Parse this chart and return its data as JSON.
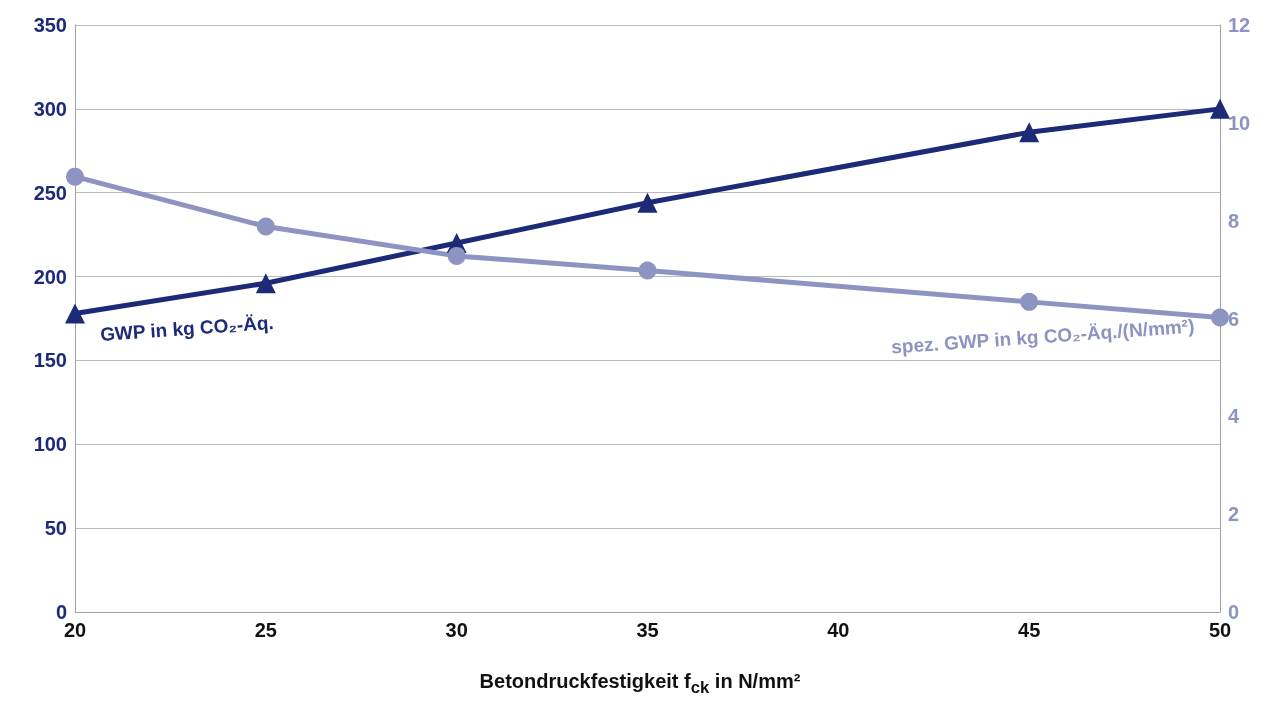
{
  "chart_data": {
    "type": "line",
    "xlabel": "Betondruckfestigkeit f$_{ck}$ in N/mm²",
    "x": [
      20,
      25,
      30,
      35,
      45,
      50
    ],
    "xlim": [
      20,
      50
    ],
    "xticks": [
      20,
      25,
      30,
      35,
      40,
      45,
      50
    ],
    "ylim": [
      0,
      350
    ],
    "yticks": [
      0,
      50,
      100,
      150,
      200,
      250,
      300,
      350
    ],
    "y2lim": [
      0,
      12
    ],
    "y2ticks": [
      0,
      2,
      4,
      6,
      8,
      10,
      12
    ],
    "grid": "y",
    "line_style": "solid",
    "series": [
      {
        "name": "GWP in kg CO₂-Äq.",
        "color": "#1c2a78",
        "marker": "triangle",
        "values": [
          178,
          196,
          220,
          244,
          286,
          300
        ]
      },
      {
        "name": "spez. GWP in kg CO₂-Äq./(N/mm²)",
        "color": "#8e94c2",
        "marker": "circle",
        "axis": "y2",
        "values": [
          8.9,
          7.88,
          7.28,
          6.98,
          6.34,
          6.02
        ]
      }
    ]
  }
}
